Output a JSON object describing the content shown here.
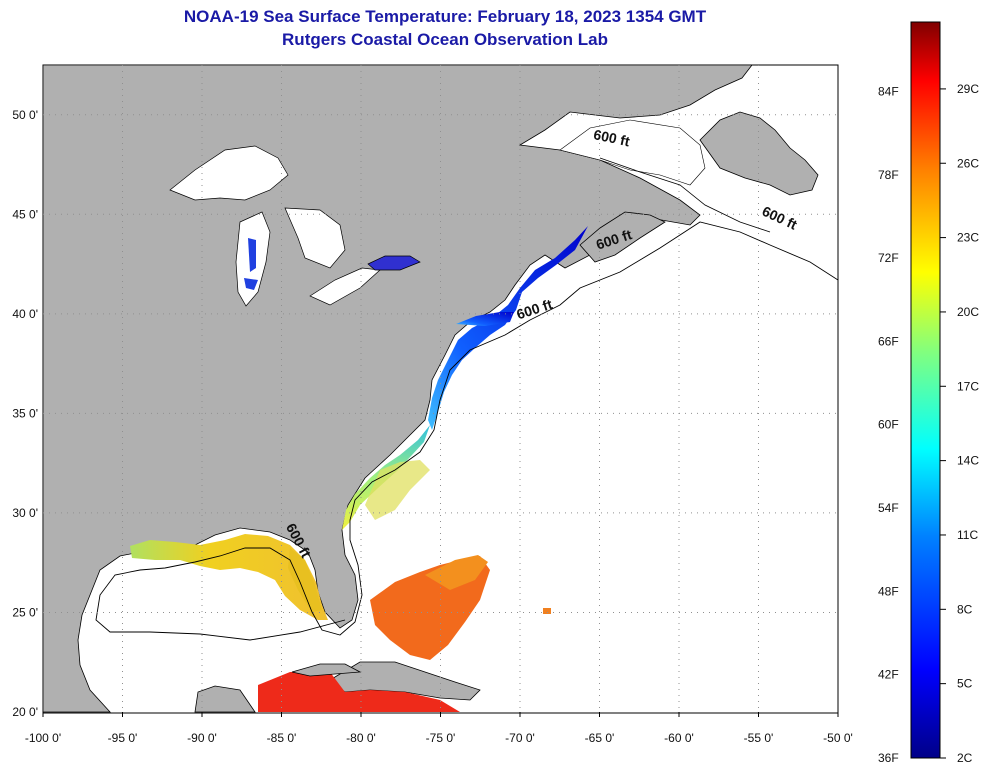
{
  "title": {
    "line1": "NOAA-19 Sea Surface Temperature:  February 18, 2023 1354 GMT",
    "line2": "Rutgers Coastal Ocean Observation Lab"
  },
  "map": {
    "lon_range": [
      -100,
      -50
    ],
    "lat_range": [
      20,
      52.5
    ],
    "lon_ticks": [
      {
        "value": -100,
        "label": "-100 0'"
      },
      {
        "value": -95,
        "label": "-95 0'"
      },
      {
        "value": -90,
        "label": "-90 0'"
      },
      {
        "value": -85,
        "label": "-85 0'"
      },
      {
        "value": -80,
        "label": "-80 0'"
      },
      {
        "value": -75,
        "label": "-75 0'"
      },
      {
        "value": -70,
        "label": "-70 0'"
      },
      {
        "value": -65,
        "label": "-65 0'"
      },
      {
        "value": -60,
        "label": "-60 0'"
      },
      {
        "value": -55,
        "label": "-55 0'"
      },
      {
        "value": -50,
        "label": "-50 0'"
      }
    ],
    "lat_ticks": [
      {
        "value": 20,
        "label": "20 0'"
      },
      {
        "value": 25,
        "label": "25 0'"
      },
      {
        "value": 30,
        "label": "30 0'"
      },
      {
        "value": 35,
        "label": "35 0'"
      },
      {
        "value": 40,
        "label": "40 0'"
      },
      {
        "value": 45,
        "label": "45 0'"
      },
      {
        "value": 50,
        "label": "50 0'"
      }
    ],
    "contour_labels": [
      {
        "text": "600 ft",
        "lon": -64.3,
        "lat": 48.6,
        "rot": 12
      },
      {
        "text": "600 ft",
        "lon": -53.8,
        "lat": 44.6,
        "rot": 25
      },
      {
        "text": "600 ft",
        "lon": -64.0,
        "lat": 43.5,
        "rot": -18
      },
      {
        "text": "600 ft",
        "lon": -69.0,
        "lat": 40.0,
        "rot": -18
      },
      {
        "text": "600 ft",
        "lon": -84.2,
        "lat": 28.5,
        "rot": 62
      }
    ],
    "colors": {
      "land": "#b0b0b0",
      "ocean": "#ffffff",
      "grid": "#9a9a9a"
    }
  },
  "colorbar": {
    "colors": [
      "#00008b",
      "#0000ff",
      "#0080ff",
      "#00ffff",
      "#80ff80",
      "#ffff00",
      "#ff8000",
      "#ff0000",
      "#800000"
    ],
    "fahrenheit": [
      {
        "value": 36,
        "label": "36F"
      },
      {
        "value": 42,
        "label": "42F"
      },
      {
        "value": 48,
        "label": "48F"
      },
      {
        "value": 54,
        "label": "54F"
      },
      {
        "value": 60,
        "label": "60F"
      },
      {
        "value": 66,
        "label": "66F"
      },
      {
        "value": 72,
        "label": "72F"
      },
      {
        "value": 78,
        "label": "78F"
      },
      {
        "value": 84,
        "label": "84F"
      }
    ],
    "celsius": [
      {
        "value": 2,
        "label": "2C"
      },
      {
        "value": 5,
        "label": "5C"
      },
      {
        "value": 8,
        "label": "8C"
      },
      {
        "value": 11,
        "label": "11C"
      },
      {
        "value": 14,
        "label": "14C"
      },
      {
        "value": 17,
        "label": "17C"
      },
      {
        "value": 20,
        "label": "20C"
      },
      {
        "value": 23,
        "label": "23C"
      },
      {
        "value": 26,
        "label": "26C"
      },
      {
        "value": 29,
        "label": "29C"
      }
    ]
  }
}
